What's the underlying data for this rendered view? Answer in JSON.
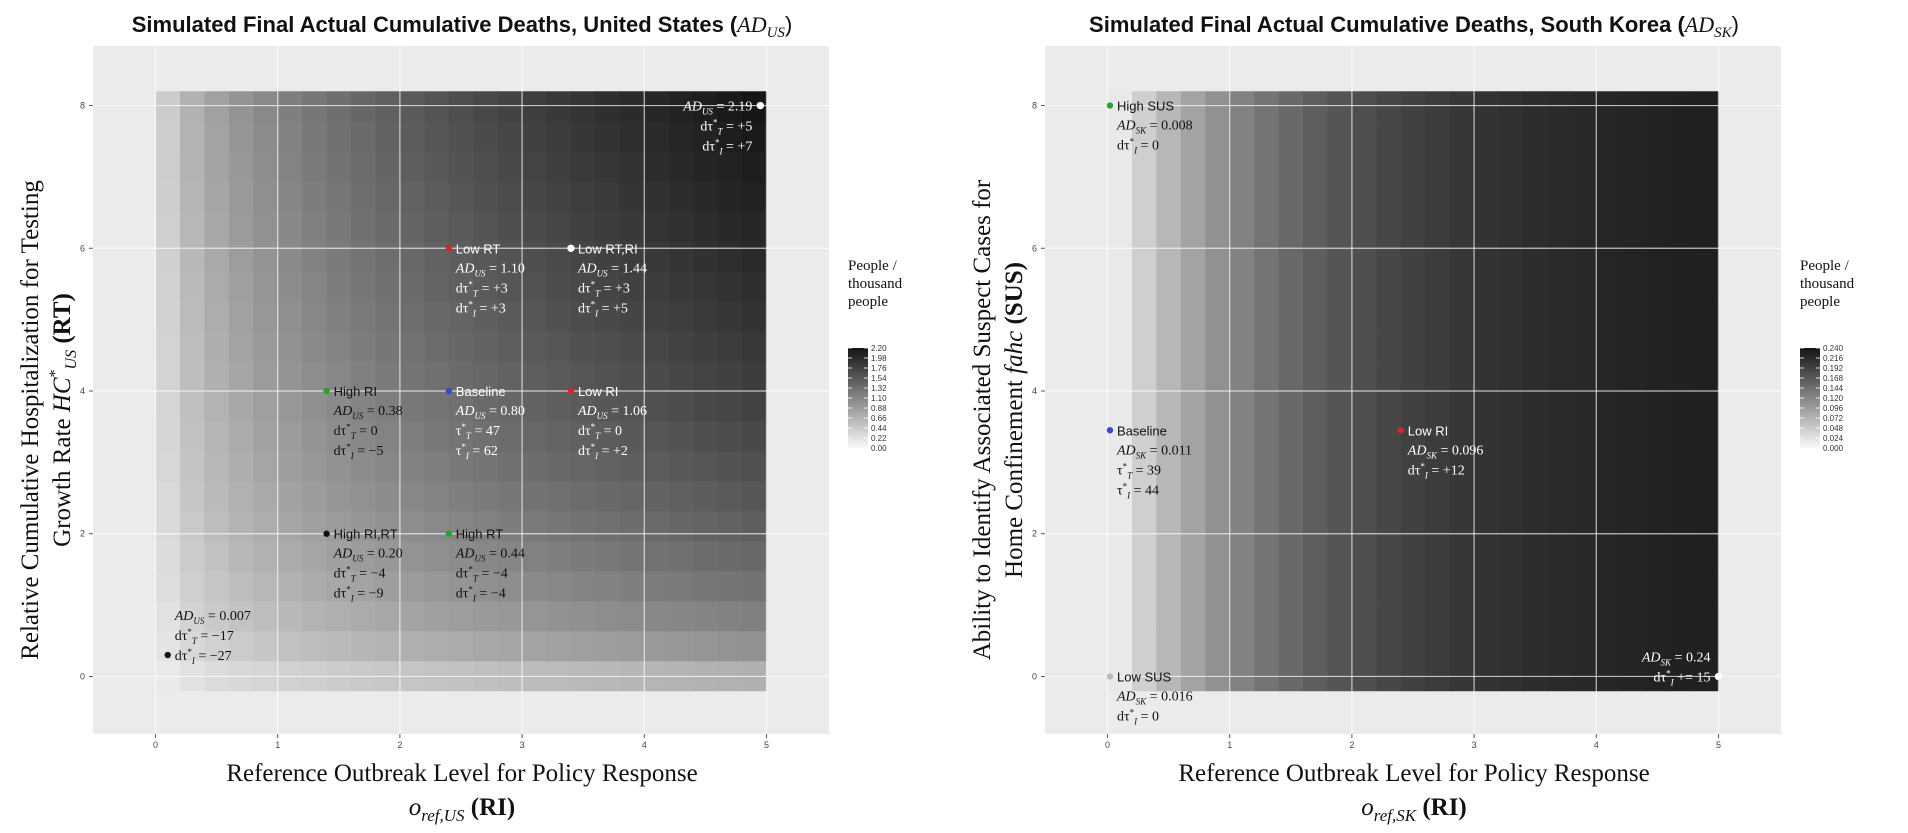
{
  "chart_data": [
    {
      "id": "us",
      "type": "heatmap",
      "title": "Simulated Final Actual Cumulative Deaths, United States (",
      "title_math": "AD",
      "title_sub": "US",
      "title_close": ")",
      "xlabel_line1": "Reference Outbreak Level for Policy Response",
      "xlabel_line2_var": "o",
      "xlabel_line2_sub": "ref,US",
      "xlabel_line2_tag": " (RI)",
      "ylabel_line1": "Relative Cumulative Hospitalization for Testing",
      "ylabel_line2_pre": "Growth Rate ",
      "ylabel_line2_var": "HC",
      "ylabel_line2_sub": "US",
      "ylabel_line2_sup": "*",
      "ylabel_line2_tag": " (RT)",
      "x_ticks": [
        "0",
        "1",
        "2",
        "3",
        "4",
        "5"
      ],
      "y_ticks": [
        "0",
        "2",
        "4",
        "6",
        "8"
      ],
      "xlim": [
        -0.25,
        5.25
      ],
      "ylim": [
        -0.4,
        8.4
      ],
      "grid": true,
      "legend": {
        "title": [
          "People /",
          "thousand",
          "people"
        ],
        "min": 0,
        "max": 2.2,
        "ticks": [
          "2.20",
          "1.98",
          "1.76",
          "1.54",
          "1.32",
          "1.10",
          "0.88",
          "0.66",
          "0.44",
          "0.22",
          "0.00"
        ],
        "placement": "right"
      },
      "points": [
        {
          "name": "Low RT",
          "x": 2.4,
          "y": 6,
          "color": "#d62728",
          "text_color": "#ffffff",
          "lines": [
            "AD_US = 1.10",
            "dτ*_T = +3",
            "dτ*_I = +3"
          ]
        },
        {
          "name": "Low RT,RI",
          "x": 3.4,
          "y": 6,
          "color": "#ffffff",
          "text_color": "#ffffff",
          "lines": [
            "AD_US = 1.44",
            "dτ*_T = +3",
            "dτ*_I = +5"
          ]
        },
        {
          "name": "High RI",
          "x": 1.4,
          "y": 4,
          "color": "#2ca02c",
          "text_color": "#111111",
          "lines": [
            "AD_US = 0.38",
            "dτ*_T = 0",
            "dτ*_I = −5"
          ]
        },
        {
          "name": "Baseline",
          "x": 2.4,
          "y": 4,
          "color": "#3b4bc8",
          "text_color": "#ffffff",
          "lines": [
            "AD_US = 0.80",
            "τ*_T = 47",
            "τ*_I = 62"
          ]
        },
        {
          "name": "Low RI",
          "x": 3.4,
          "y": 4,
          "color": "#d62728",
          "text_color": "#ffffff",
          "lines": [
            "AD_US = 1.06",
            "dτ*_T = 0",
            "dτ*_I = +2"
          ]
        },
        {
          "name": "High RI,RT",
          "x": 1.4,
          "y": 2,
          "color": "#111111",
          "text_color": "#111111",
          "lines": [
            "AD_US = 0.20",
            "dτ*_T = −4",
            "dτ*_I = −9"
          ]
        },
        {
          "name": "High RT",
          "x": 2.4,
          "y": 2,
          "color": "#2ca02c",
          "text_color": "#111111",
          "lines": [
            "AD_US = 0.44",
            "dτ*_T = −4",
            "dτ*_I = −4"
          ]
        },
        {
          "name": "",
          "x": 0.1,
          "y": 0.3,
          "color": "#111111",
          "text_color": "#111111",
          "lines": [
            "AD_US = 0.007",
            "dτ*_T = −17",
            "dτ*_I = −27"
          ]
        },
        {
          "name": "",
          "x": 4.95,
          "y": 8,
          "color": "#ffffff",
          "text_color": "#ffffff",
          "lines": [
            "AD_US = 2.19",
            "dτ*_T = +5",
            "dτ*_I = +7"
          ]
        }
      ]
    },
    {
      "id": "sk",
      "type": "heatmap",
      "title": "Simulated Final Actual Cumulative Deaths, South Korea (",
      "title_math": "AD",
      "title_sub": "SK",
      "title_close": ")",
      "xlabel_line1": "Reference Outbreak Level for Policy Response",
      "xlabel_line2_var": "o",
      "xlabel_line2_sub": "ref,SK",
      "xlabel_line2_tag": " (RI)",
      "ylabel_line1": "Ability to Identify Associated Suspect Cases for",
      "ylabel_line2_pre": "Home Confinement ",
      "ylabel_line2_var": "fahc",
      "ylabel_line2_sub": "",
      "ylabel_line2_sup": "",
      "ylabel_line2_tag": " (SUS)",
      "x_ticks": [
        "0",
        "1",
        "2",
        "3",
        "4",
        "5"
      ],
      "y_ticks": [
        "0",
        "2",
        "4",
        "6",
        "8"
      ],
      "xlim": [
        -0.25,
        5.25
      ],
      "ylim": [
        -0.4,
        8.4
      ],
      "grid": true,
      "legend": {
        "title": [
          "People /",
          "thousand",
          "people"
        ],
        "min": 0,
        "max": 0.24,
        "ticks": [
          "0.240",
          "0.216",
          "0.192",
          "0.168",
          "0.144",
          "0.120",
          "0.096",
          "0.072",
          "0.048",
          "0.024",
          "0.000"
        ],
        "placement": "right"
      },
      "points": [
        {
          "name": "High SUS",
          "x": 0.02,
          "y": 8,
          "color": "#2ca02c",
          "text_color": "#111111",
          "lines": [
            "AD_SK = 0.008",
            "dτ*_I = 0"
          ]
        },
        {
          "name": "Baseline",
          "x": 0.02,
          "y": 3.45,
          "color": "#3b4bc8",
          "text_color": "#111111",
          "lines": [
            "AD_SK = 0.011",
            "τ*_T = 39",
            "τ*_I = 44"
          ]
        },
        {
          "name": "Low RI",
          "x": 2.4,
          "y": 3.45,
          "color": "#d62728",
          "text_color": "#ffffff",
          "lines": [
            "AD_SK = 0.096",
            "dτ*_I = +12"
          ]
        },
        {
          "name": "Low SUS",
          "x": 0.02,
          "y": 0,
          "color": "#bbbbbb",
          "text_color": "#111111",
          "lines": [
            "AD_SK = 0.016",
            "dτ*_I = 0"
          ]
        },
        {
          "name": "",
          "x": 5.0,
          "y": 0,
          "color": "#ffffff",
          "text_color": "#ffffff",
          "lines": [
            "AD_SK = 0.24",
            "dτ*_I += 15"
          ]
        }
      ]
    }
  ]
}
